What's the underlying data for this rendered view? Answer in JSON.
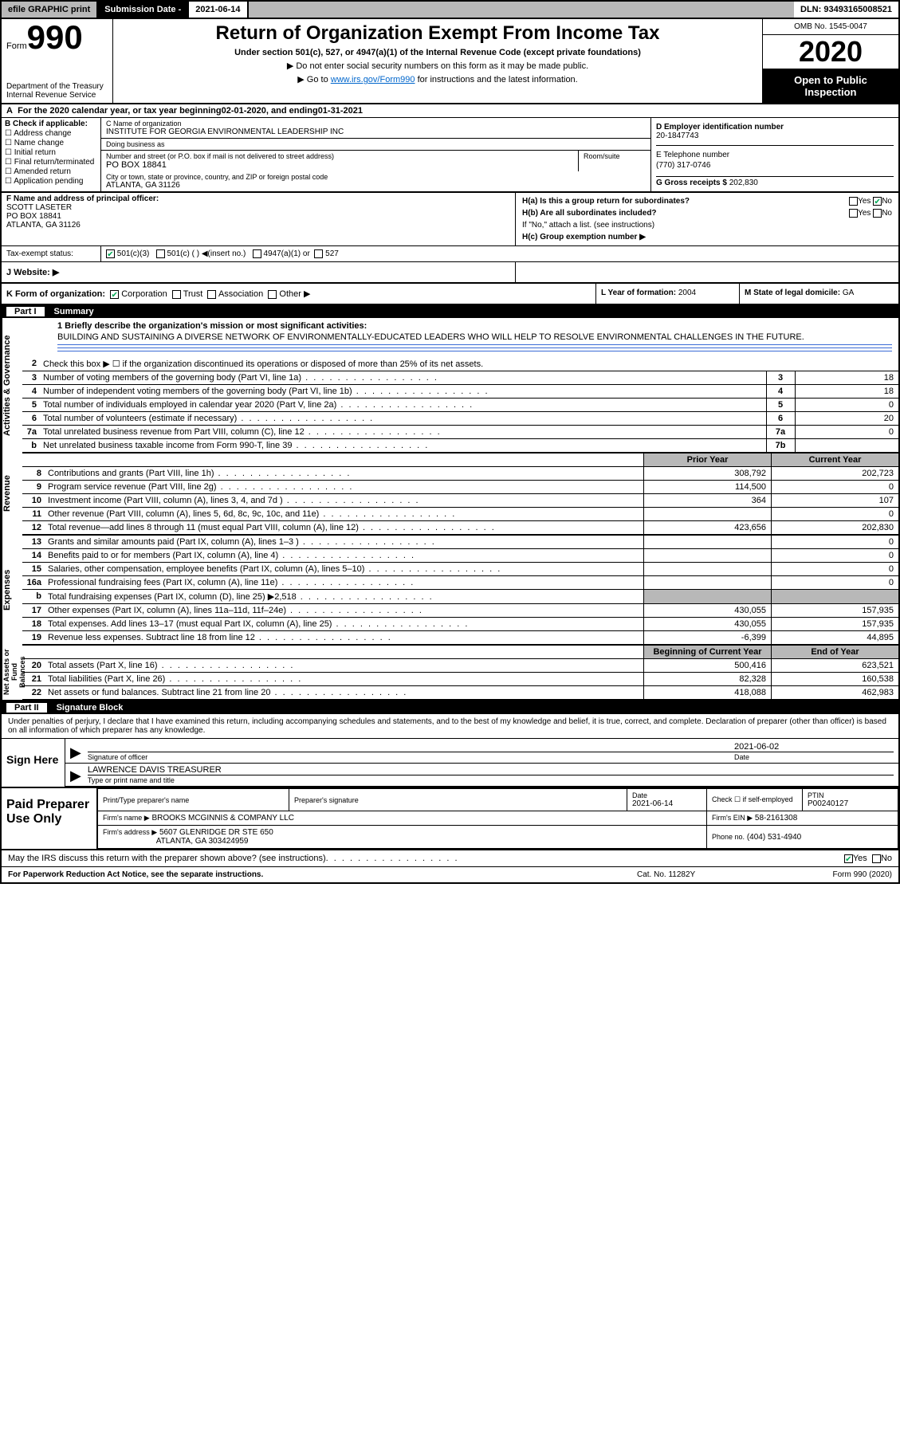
{
  "topbar": {
    "efile": "efile GRAPHIC print",
    "submission_lbl": "Submission Date -",
    "submission_date": "2021-06-14",
    "dln_lbl": "DLN:",
    "dln": "93493165008521"
  },
  "header": {
    "form_word": "Form",
    "form_num": "990",
    "dept": "Department of the Treasury Internal Revenue Service",
    "title": "Return of Organization Exempt From Income Tax",
    "sub": "Under section 501(c), 527, or 4947(a)(1) of the Internal Revenue Code (except private foundations)",
    "note1": "Do not enter social security numbers on this form as it may be made public.",
    "note2_pre": "Go to ",
    "note2_link": "www.irs.gov/Form990",
    "note2_post": " for instructions and the latest information.",
    "omb": "OMB No. 1545-0047",
    "year": "2020",
    "public": "Open to Public Inspection"
  },
  "period": {
    "text_pre": "For the 2020 calendar year, or tax year beginning ",
    "begin": "02-01-2020",
    "mid": " , and ending ",
    "end": "01-31-2021"
  },
  "section_b": {
    "b_lbl": "B Check if applicable:",
    "options": [
      "Address change",
      "Name change",
      "Initial return",
      "Final return/terminated",
      "Amended return",
      "Application pending"
    ]
  },
  "section_c": {
    "name_lbl": "C Name of organization",
    "name": "INSTITUTE FOR GEORGIA ENVIRONMENTAL LEADERSHIP INC",
    "dba_lbl": "Doing business as",
    "dba": "",
    "street_lbl": "Number and street (or P.O. box if mail is not delivered to street address)",
    "street": "PO BOX 18841",
    "room_lbl": "Room/suite",
    "city_lbl": "City or town, state or province, country, and ZIP or foreign postal code",
    "city": "ATLANTA, GA  31126"
  },
  "section_d": {
    "d_lbl": "D Employer identification number",
    "ein": "20-1847743",
    "e_lbl": "E Telephone number",
    "phone": "(770) 317-0746",
    "g_lbl": "G Gross receipts $",
    "gross": "202,830"
  },
  "section_f": {
    "f_lbl": "F Name and address of principal officer:",
    "name": "SCOTT LASETER",
    "addr1": "PO BOX 18841",
    "addr2": "ATLANTA, GA  31126"
  },
  "section_h": {
    "ha": "H(a)  Is this a group return for subordinates?",
    "hb": "H(b)  Are all subordinates included?",
    "hb_note": "If \"No,\" attach a list. (see instructions)",
    "hc": "H(c)  Group exemption number ▶",
    "yes": "Yes",
    "no": "No"
  },
  "tax_status": {
    "lbl": "Tax-exempt status:",
    "opt1": "501(c)(3)",
    "opt2": "501(c) (  ) ◀(insert no.)",
    "opt3": "4947(a)(1) or",
    "opt4": "527"
  },
  "website": {
    "lbl": "J   Website: ▶"
  },
  "k": {
    "lbl": "K Form of organization:",
    "corp": "Corporation",
    "trust": "Trust",
    "assoc": "Association",
    "other": "Other ▶",
    "l_lbl": "L Year of formation:",
    "l_val": "2004",
    "m_lbl": "M State of legal domicile:",
    "m_val": "GA"
  },
  "part1": {
    "hdr_part": "Part I",
    "hdr_title": "Summary",
    "q1_lbl": "1  Briefly describe the organization's mission or most significant activities:",
    "q1_ans": "BUILDING AND SUSTAINING A DIVERSE NETWORK OF ENVIRONMENTALLY-EDUCATED LEADERS WHO WILL HELP TO RESOLVE ENVIRONMENTAL CHALLENGES IN THE FUTURE.",
    "side_activities": "Activities & Governance",
    "side_revenue": "Revenue",
    "side_expenses": "Expenses",
    "side_net": "Net Assets or Fund Balances",
    "rows_ag": [
      {
        "n": "2",
        "d": "Check this box ▶ ☐  if the organization discontinued its operations or disposed of more than 25% of its net assets.",
        "boxn": "",
        "val": ""
      },
      {
        "n": "3",
        "d": "Number of voting members of the governing body (Part VI, line 1a)",
        "boxn": "3",
        "val": "18"
      },
      {
        "n": "4",
        "d": "Number of independent voting members of the governing body (Part VI, line 1b)",
        "boxn": "4",
        "val": "18"
      },
      {
        "n": "5",
        "d": "Total number of individuals employed in calendar year 2020 (Part V, line 2a)",
        "boxn": "5",
        "val": "0"
      },
      {
        "n": "6",
        "d": "Total number of volunteers (estimate if necessary)",
        "boxn": "6",
        "val": "20"
      },
      {
        "n": "7a",
        "d": "Total unrelated business revenue from Part VIII, column (C), line 12",
        "boxn": "7a",
        "val": "0"
      },
      {
        "n": "b",
        "d": "Net unrelated business taxable income from Form 990-T, line 39",
        "boxn": "7b",
        "val": ""
      }
    ],
    "pycy_hdr": {
      "py": "Prior Year",
      "cy": "Current Year"
    },
    "rows_rev": [
      {
        "n": "8",
        "d": "Contributions and grants (Part VIII, line 1h)",
        "py": "308,792",
        "cy": "202,723"
      },
      {
        "n": "9",
        "d": "Program service revenue (Part VIII, line 2g)",
        "py": "114,500",
        "cy": "0"
      },
      {
        "n": "10",
        "d": "Investment income (Part VIII, column (A), lines 3, 4, and 7d )",
        "py": "364",
        "cy": "107"
      },
      {
        "n": "11",
        "d": "Other revenue (Part VIII, column (A), lines 5, 6d, 8c, 9c, 10c, and 11e)",
        "py": "",
        "cy": "0"
      },
      {
        "n": "12",
        "d": "Total revenue—add lines 8 through 11 (must equal Part VIII, column (A), line 12)",
        "py": "423,656",
        "cy": "202,830"
      }
    ],
    "rows_exp": [
      {
        "n": "13",
        "d": "Grants and similar amounts paid (Part IX, column (A), lines 1–3 )",
        "py": "",
        "cy": "0"
      },
      {
        "n": "14",
        "d": "Benefits paid to or for members (Part IX, column (A), line 4)",
        "py": "",
        "cy": "0"
      },
      {
        "n": "15",
        "d": "Salaries, other compensation, employee benefits (Part IX, column (A), lines 5–10)",
        "py": "",
        "cy": "0"
      },
      {
        "n": "16a",
        "d": "Professional fundraising fees (Part IX, column (A), line 11e)",
        "py": "",
        "cy": "0"
      },
      {
        "n": "b",
        "d": "Total fundraising expenses (Part IX, column (D), line 25) ▶2,518",
        "py": "grey",
        "cy": "grey"
      },
      {
        "n": "17",
        "d": "Other expenses (Part IX, column (A), lines 11a–11d, 11f–24e)",
        "py": "430,055",
        "cy": "157,935"
      },
      {
        "n": "18",
        "d": "Total expenses. Add lines 13–17 (must equal Part IX, column (A), line 25)",
        "py": "430,055",
        "cy": "157,935"
      },
      {
        "n": "19",
        "d": "Revenue less expenses. Subtract line 18 from line 12",
        "py": "-6,399",
        "cy": "44,895"
      }
    ],
    "net_hdr": {
      "py": "Beginning of Current Year",
      "cy": "End of Year"
    },
    "rows_net": [
      {
        "n": "20",
        "d": "Total assets (Part X, line 16)",
        "py": "500,416",
        "cy": "623,521"
      },
      {
        "n": "21",
        "d": "Total liabilities (Part X, line 26)",
        "py": "82,328",
        "cy": "160,538"
      },
      {
        "n": "22",
        "d": "Net assets or fund balances. Subtract line 21 from line 20",
        "py": "418,088",
        "cy": "462,983"
      }
    ]
  },
  "part2": {
    "hdr_part": "Part II",
    "hdr_title": "Signature Block",
    "declaration": "Under penalties of perjury, I declare that I have examined this return, including accompanying schedules and statements, and to the best of my knowledge and belief, it is true, correct, and complete. Declaration of preparer (other than officer) is based on all information of which preparer has any knowledge.",
    "sign_here": "Sign Here",
    "sig_officer_lbl": "Signature of officer",
    "sig_date": "2021-06-02",
    "sig_date_lbl": "Date",
    "officer_name": "LAWRENCE DAVIS  TREASURER",
    "officer_name_lbl": "Type or print name and title"
  },
  "prep": {
    "lbl": "Paid Preparer Use Only",
    "print_lbl": "Print/Type preparer's name",
    "prep_sig_lbl": "Preparer's signature",
    "date_lbl": "Date",
    "date": "2021-06-14",
    "check_lbl": "Check ☐ if self-employed",
    "ptin_lbl": "PTIN",
    "ptin": "P00240127",
    "firm_name_lbl": "Firm's name    ▶",
    "firm_name": "BROOKS MCGINNIS & COMPANY LLC",
    "firm_ein_lbl": "Firm's EIN ▶",
    "firm_ein": "58-2161308",
    "firm_addr_lbl": "Firm's address ▶",
    "firm_addr1": "5607 GLENRIDGE DR STE 650",
    "firm_addr2": "ATLANTA, GA  303424959",
    "phone_lbl": "Phone no.",
    "phone": "(404) 531-4940"
  },
  "discuss": {
    "q": "May the IRS discuss this return with the preparer shown above? (see instructions)",
    "yes": "Yes",
    "no": "No"
  },
  "footer": {
    "left": "For Paperwork Reduction Act Notice, see the separate instructions.",
    "mid": "Cat. No. 11282Y",
    "right": "Form 990 (2020)"
  },
  "colors": {
    "grey": "#b8b8b8",
    "black": "#000000",
    "link": "#0066cc",
    "check_green": "#00aa55"
  }
}
